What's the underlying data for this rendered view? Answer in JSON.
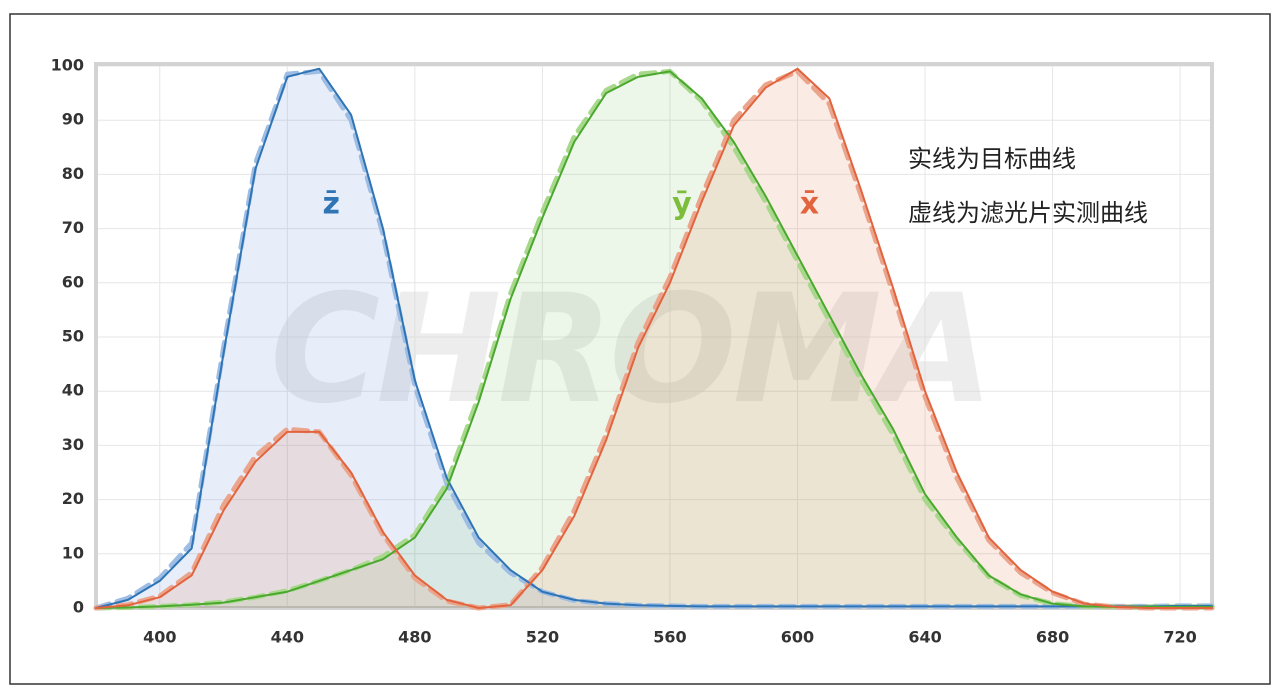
{
  "chart_data": {
    "type": "line",
    "x": [
      380,
      390,
      400,
      410,
      420,
      430,
      440,
      450,
      460,
      470,
      480,
      490,
      500,
      510,
      520,
      530,
      540,
      550,
      560,
      570,
      580,
      590,
      600,
      610,
      620,
      630,
      640,
      650,
      660,
      670,
      680,
      690,
      700,
      710,
      720,
      730
    ],
    "series": [
      {
        "color": "#9dbde4",
        "dash": true,
        "values": [
          0,
          1.8,
          5.5,
          12,
          48,
          82,
          98.5,
          99,
          90,
          69,
          41,
          23,
          12,
          6.5,
          3,
          1.4,
          0.8,
          0.5,
          0.4,
          0.3,
          0.3,
          0.3,
          0.3,
          0.3,
          0.3,
          0.3,
          0.3,
          0.3,
          0.3,
          0.3,
          0.3,
          0.3,
          0.3,
          0.3,
          0.4,
          0.4
        ]
      },
      {
        "color": "#a8d88c",
        "dash": true,
        "values": [
          0,
          0.1,
          0.3,
          0.6,
          1.1,
          2,
          3.2,
          5,
          7,
          9.5,
          13.5,
          23,
          39,
          58,
          73,
          87,
          95.5,
          98.5,
          99,
          93.5,
          85,
          75,
          64,
          53,
          42,
          32,
          20,
          12.5,
          5.8,
          2.3,
          0.8,
          0.3,
          0.2,
          0.2,
          0.2,
          0.2
        ]
      },
      {
        "color": "#eaa58c",
        "dash": true,
        "values": [
          0,
          0.6,
          2.2,
          6.5,
          19,
          28,
          33,
          32.5,
          24.5,
          13.5,
          5.5,
          1.3,
          0,
          0.6,
          7.5,
          18,
          32,
          49,
          61,
          76,
          90,
          96.5,
          99,
          93,
          76,
          58,
          39,
          24,
          12.5,
          6.5,
          2.8,
          0.7,
          0.2,
          0,
          0,
          0
        ]
      },
      {
        "name": "z̄",
        "color": "#2f74b5",
        "fill": "#4a7fd622",
        "values": [
          0,
          1.5,
          5,
          11,
          47,
          81,
          98,
          99.5,
          91,
          70,
          42,
          24,
          13,
          7,
          3,
          1.5,
          0.8,
          0.5,
          0.4,
          0.3,
          0.3,
          0.3,
          0.3,
          0.3,
          0.3,
          0.3,
          0.3,
          0.3,
          0.3,
          0.3,
          0.3,
          0.3,
          0.3,
          0.3,
          0.4,
          0.4
        ]
      },
      {
        "name": "ȳ",
        "color": "#4aa82e",
        "label_color": "#7cbd3c",
        "fill": "#6cbf4a1f",
        "values": [
          0,
          0.1,
          0.3,
          0.6,
          1,
          2,
          3,
          5,
          7,
          9,
          13,
          22,
          38,
          57,
          72,
          86,
          95,
          98,
          99,
          94,
          86,
          76,
          65,
          54,
          43,
          33,
          21,
          13,
          6,
          2.5,
          0.8,
          0.3,
          0.2,
          0.2,
          0.2,
          0.2
        ]
      },
      {
        "name": "x̄",
        "color": "#e2643e",
        "fill": "#e0704a24",
        "values": [
          0,
          0.5,
          2,
          6,
          18,
          27,
          32.5,
          32.5,
          25,
          14,
          6,
          1.5,
          0,
          0.5,
          7,
          17,
          31,
          48,
          60,
          75,
          89,
          96,
          99.5,
          94,
          77,
          59,
          40,
          25,
          13,
          7,
          3,
          0.8,
          0.2,
          0,
          0,
          0
        ]
      }
    ],
    "xlim": [
      380,
      730
    ],
    "xticks": [
      400,
      440,
      480,
      520,
      560,
      600,
      640,
      680,
      720
    ],
    "ylim": [
      0,
      100
    ],
    "yticks": [
      0,
      10,
      20,
      30,
      40,
      50,
      60,
      70,
      80,
      90,
      100
    ],
    "grid": true,
    "annotations": [
      "实线为目标曲线",
      "虚线为滤光片实测曲线"
    ],
    "watermark": "CHROMA"
  }
}
